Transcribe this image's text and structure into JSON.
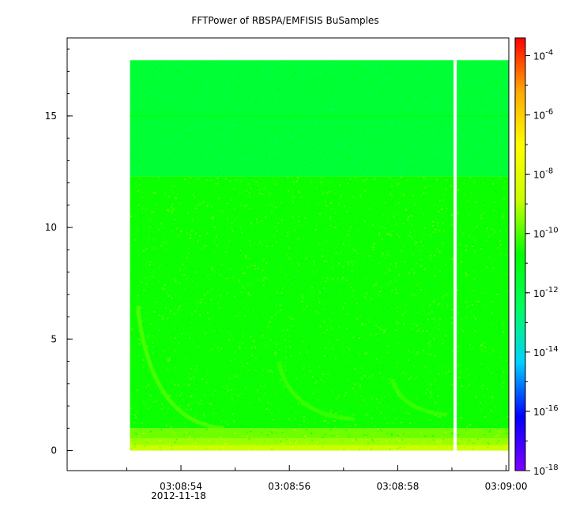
{
  "chart_data": {
    "type": "heatmap",
    "title": "FFTPower of RBSPA/EMFISIS  BuSamples",
    "x": {
      "ticks": [
        "03:08:54",
        "03:08:56",
        "03:08:58",
        "03:09:00"
      ],
      "tick_seconds": [
        54,
        56,
        58,
        60
      ],
      "range_seconds": [
        51.9,
        60.05
      ],
      "date_label": "2012-11-18",
      "minor_tick_seconds": [
        53,
        55,
        57,
        59
      ]
    },
    "y": {
      "ticks": [
        "0",
        "5",
        "10",
        "15"
      ],
      "tick_values": [
        0,
        5,
        10,
        15
      ],
      "range": [
        -0.9,
        18.5
      ],
      "minor_tick_step": 1
    },
    "data_extent": {
      "time_start_seconds": 53.06,
      "time_end_seconds": 60.05,
      "freq_min": 0,
      "freq_max": 17.5,
      "gap_seconds": [
        59.03,
        59.09
      ]
    },
    "bands": [
      {
        "freq": [
          0,
          0.25
        ],
        "log10_power": -8.8
      },
      {
        "freq": [
          0.25,
          0.55
        ],
        "log10_power": -9.3
      },
      {
        "freq": [
          0.55,
          1.0
        ],
        "log10_power": -9.7
      },
      {
        "freq": [
          1.0,
          12.3
        ],
        "log10_power": -10.6
      },
      {
        "freq": [
          12.3,
          17.5
        ],
        "log10_power": -11.7
      }
    ],
    "line_feature": {
      "freq": 15.0,
      "log10_power": -10.9
    },
    "arcs": [
      {
        "t_start": 53.2,
        "t_end": 54.8,
        "freq_start": 6.5,
        "freq_end": 1.0,
        "log10_power": -9.6
      },
      {
        "t_start": 55.8,
        "t_end": 57.2,
        "freq_start": 4.0,
        "freq_end": 1.4,
        "log10_power": -9.9
      },
      {
        "t_start": 57.9,
        "t_end": 58.9,
        "freq_start": 3.2,
        "freq_end": 1.6,
        "log10_power": -9.9
      }
    ],
    "colorbar": {
      "scale": "log",
      "range_log10": [
        -18,
        -3.4
      ],
      "tick_exponents": [
        -18,
        -16,
        -14,
        -12,
        -10,
        -8,
        -6,
        -4
      ],
      "tick_base": "10",
      "colormap": [
        "#7f00ff",
        "#0000ff",
        "#00d0ff",
        "#00ff60",
        "#00ff00",
        "#c8ff00",
        "#ffff00",
        "#ffaa00",
        "#ff0000"
      ]
    }
  }
}
